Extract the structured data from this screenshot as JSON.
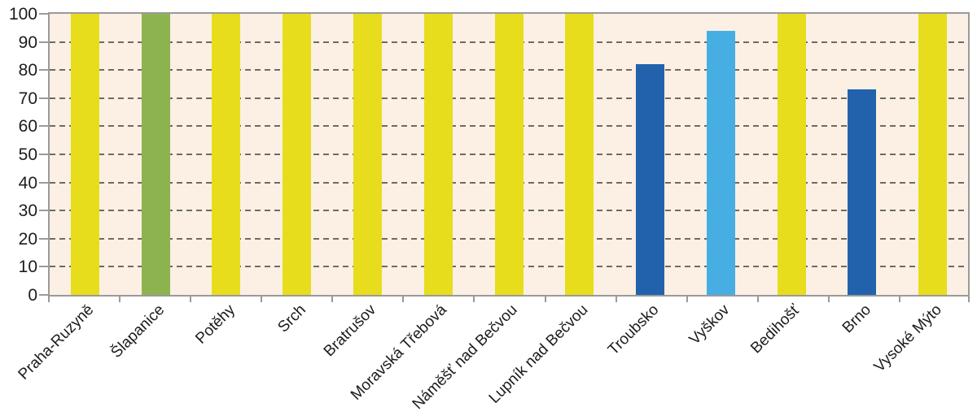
{
  "chart_data": {
    "type": "bar",
    "categories": [
      "Praha-Ruzyně",
      "Šlapanice",
      "Potěhy",
      "Srch",
      "Bratrušov",
      "Moravská Třebová",
      "Náměšť nad Bečvou",
      "Lupník nad Bečvou",
      "Troubsko",
      "Vyškov",
      "Bedihošť",
      "Brno",
      "Vysoké Mýto"
    ],
    "values": [
      100,
      100,
      100,
      100,
      100,
      100,
      100,
      100,
      82,
      94,
      100,
      73,
      100
    ],
    "bar_color_keys": [
      "yellow",
      "green",
      "yellow",
      "yellow",
      "yellow",
      "yellow",
      "yellow",
      "yellow",
      "dark_blue",
      "light_blue",
      "yellow",
      "dark_blue",
      "yellow"
    ],
    "colors": {
      "yellow": "#e7dd1d",
      "green": "#8db351",
      "dark_blue": "#2262ac",
      "light_blue": "#47aee4",
      "plot_background": "#fbf0e3",
      "frame": "#9a9a9a",
      "gridline": "#6f6a66",
      "tick": "#9a9a9a",
      "label_text": "#1c1c1c"
    },
    "title": "",
    "xlabel": "",
    "ylabel": "",
    "ylim": [
      0,
      100
    ],
    "yticks": [
      0,
      10,
      20,
      30,
      40,
      50,
      60,
      70,
      80,
      90,
      100
    ],
    "grid": "horizontal-dashed",
    "gridline_levels": [
      10,
      20,
      30,
      40,
      50,
      60,
      70,
      80,
      90
    ],
    "legend": "none",
    "x_label_rotation_deg": 45
  }
}
